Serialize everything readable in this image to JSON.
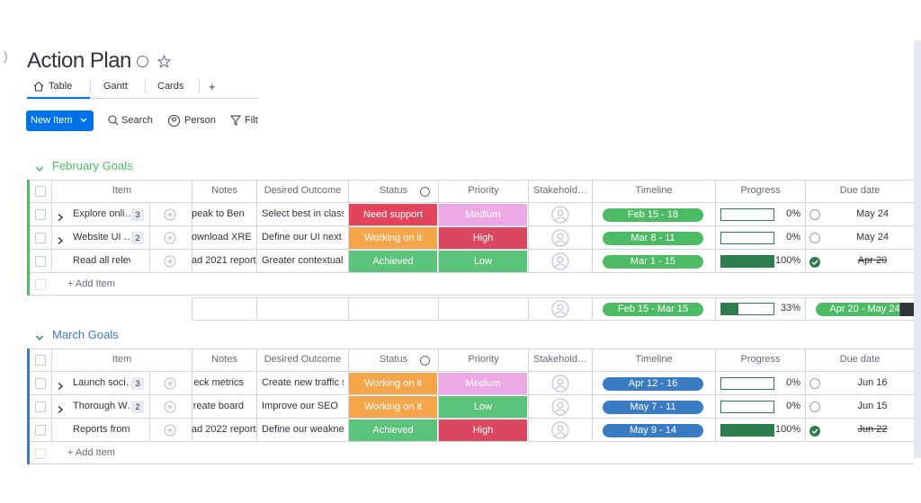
{
  "header": {
    "title": "Action Plan",
    "tabs": [
      "Table",
      "Gantt",
      "Cards",
      "+"
    ]
  },
  "toolbar": {
    "new_item": "New Item",
    "search": "Search",
    "person": "Person",
    "filter": "Filt"
  },
  "columns": [
    "Item",
    "Notes",
    "Desired Outcome",
    "Status",
    "Priority",
    "Stakehold…",
    "Timeline",
    "Progress",
    "Due date"
  ],
  "groups": [
    {
      "title": "February Goals",
      "color": "#4dbb63",
      "add_item": "+ Add Item",
      "rows": [
        {
          "name": "Explore onli…",
          "count": 3,
          "notes": "peak to Ben",
          "outcome": "Select best in class…",
          "status": {
            "label": "Need support",
            "color": "#e2445c"
          },
          "priority": {
            "label": "Medium",
            "color": "#eda8e6"
          },
          "timeline": "Feb 15 - 18",
          "progress": {
            "value": 0,
            "label": "0%"
          },
          "due": "May 24",
          "done": false
        },
        {
          "name": "Website UI …",
          "count": 2,
          "notes": "ownload XRE",
          "outcome": "Define our UI next s…",
          "status": {
            "label": "Working on it",
            "color": "#f5a64a"
          },
          "priority": {
            "label": "High",
            "color": "#d9485e"
          },
          "timeline": "Mar 8 - 11",
          "progress": {
            "value": 0,
            "label": "0%"
          },
          "due": "May 24",
          "done": false
        },
        {
          "name": "Read all releva…",
          "count": null,
          "notes": "ad 2021 report",
          "outcome": "Greater contextual …",
          "status": {
            "label": "Achieved",
            "color": "#5ac47a"
          },
          "priority": {
            "label": "Low",
            "color": "#5ac47a"
          },
          "timeline": "Mar 1 - 15",
          "progress": {
            "value": 100,
            "label": "100%"
          },
          "due": "Apr 20",
          "done": true
        }
      ],
      "summary": {
        "timeline": "Feb 15 - Mar 15",
        "progress": {
          "value": 33,
          "label": "33%"
        },
        "due": "Apr 20 - May 24"
      }
    },
    {
      "title": "March Goals",
      "color": "#3a7cc4",
      "add_item": "+ Add Item",
      "rows": [
        {
          "name": "Launch soci…",
          "count": 3,
          "notes": "eck metrics",
          "outcome": "Create new traffic s…",
          "status": {
            "label": "Working on it",
            "color": "#f5a64a"
          },
          "priority": {
            "label": "Medium",
            "color": "#eda8e6"
          },
          "timeline": "Apr 12 - 16",
          "progress": {
            "value": 0,
            "label": "0%"
          },
          "due": "Jun 16",
          "done": false
        },
        {
          "name": "Thorough W…",
          "count": 2,
          "notes": "reate board",
          "outcome": "Improve our SEO",
          "status": {
            "label": "Working on it",
            "color": "#f5a64a"
          },
          "priority": {
            "label": "Low",
            "color": "#5ac47a"
          },
          "timeline": "May 7 - 11",
          "progress": {
            "value": 0,
            "label": "0%"
          },
          "due": "Jun 15",
          "done": false
        },
        {
          "name": "Reports from D…",
          "count": null,
          "notes": "ad 2022 report",
          "outcome": "Define our weaknes…",
          "status": {
            "label": "Achieved",
            "color": "#5ac47a"
          },
          "priority": {
            "label": "High",
            "color": "#d9485e"
          },
          "timeline": "May 9 - 14",
          "progress": {
            "value": 100,
            "label": "100%"
          },
          "due": "Jun 22",
          "done": true
        }
      ]
    }
  ]
}
